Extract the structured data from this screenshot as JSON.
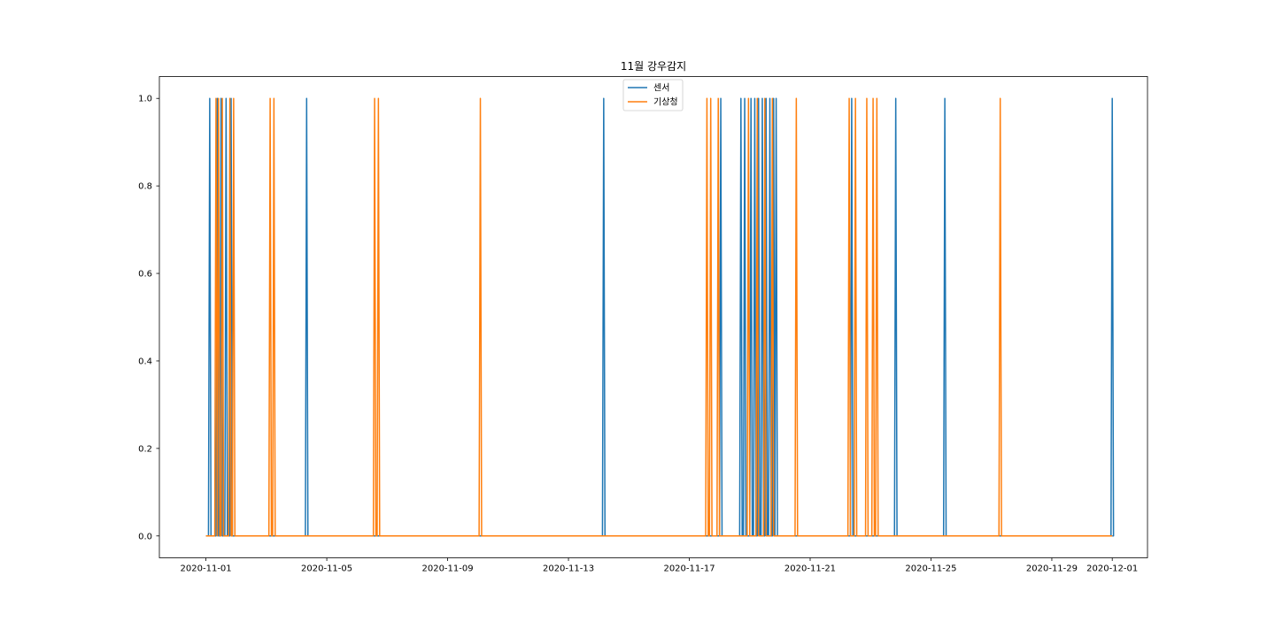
{
  "chart_data": {
    "type": "line",
    "title": "11월 강우감지",
    "xlabel": "",
    "ylabel": "",
    "x_type": "datetime",
    "xlim": [
      "2020-10-30T11:00",
      "2020-12-02T04:00"
    ],
    "ylim": [
      -0.05,
      1.05
    ],
    "grid": false,
    "legend": "top-center",
    "x_ticks": [
      "2020-11-01",
      "2020-11-05",
      "2020-11-09",
      "2020-11-13",
      "2020-11-17",
      "2020-11-21",
      "2020-11-25",
      "2020-11-29",
      "2020-12-01"
    ],
    "y_ticks": [
      "0.0",
      "0.2",
      "0.4",
      "0.6",
      "0.8",
      "1.0"
    ],
    "series": [
      {
        "name": "센서",
        "color": "#1f77b4",
        "events": [
          "2020-11-01T03:00",
          "2020-11-01T09:00",
          "2020-11-01T12:00",
          "2020-11-01T16:00",
          "2020-11-01T20:00",
          "2020-11-04T08:00",
          "2020-11-14T04:00",
          "2020-11-18T01:00",
          "2020-11-18T17:00",
          "2020-11-18T20:00",
          "2020-11-19T01:00",
          "2020-11-19T04:00",
          "2020-11-19T07:00",
          "2020-11-19T10:00",
          "2020-11-19T13:00",
          "2020-11-19T16:00",
          "2020-11-19T19:00",
          "2020-11-19T21:00",
          "2020-11-22T09:00",
          "2020-11-23T20:00",
          "2020-11-25T11:00",
          "2020-12-01T00:00"
        ]
      },
      {
        "name": "기상청",
        "color": "#ff7f0e",
        "events": [
          "2020-11-01T08:00",
          "2020-11-01T10:00",
          "2020-11-01T13:00",
          "2020-11-01T19:00",
          "2020-11-01T22:00",
          "2020-11-03T03:00",
          "2020-11-03T06:00",
          "2020-11-06T14:00",
          "2020-11-06T17:00",
          "2020-11-10T02:00",
          "2020-11-17T14:00",
          "2020-11-17T17:00",
          "2020-11-17T23:00",
          "2020-11-18T23:00",
          "2020-11-19T06:00",
          "2020-11-19T12:00",
          "2020-11-19T18:00",
          "2020-11-20T13:00",
          "2020-11-22T07:00",
          "2020-11-22T12:00",
          "2020-11-22T21:00",
          "2020-11-23T02:00",
          "2020-11-23T05:00",
          "2020-11-27T07:00"
        ]
      }
    ],
    "range": [
      "2020-11-01T00:00",
      "2020-12-01T00:00"
    ]
  }
}
